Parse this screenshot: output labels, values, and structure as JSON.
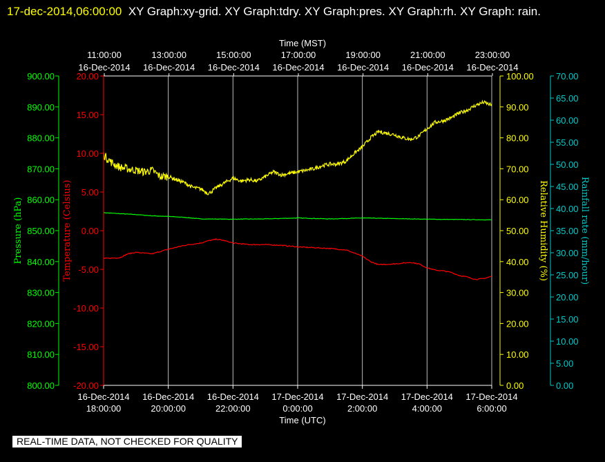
{
  "header": {
    "timestamp": "17-dec-2014,06:00:00",
    "graphs": "XY Graph:xy-grid.  XY Graph:tdry.  XY Graph:pres.  XY Graph:rh.  XY Graph: rain."
  },
  "quality_notice": "REAL-TIME DATA, NOT CHECKED FOR QUALITY",
  "chart_data": {
    "type": "line",
    "colors": {
      "temperature": "#ff0000",
      "pressure": "#00ff00",
      "humidity": "#ffff00",
      "rainfall": "#00cccc",
      "grid": "#ffffff"
    },
    "x_top": {
      "label": "Time (MST)",
      "ticks": [
        {
          "time": "11:00:00",
          "date": "16-Dec-2014"
        },
        {
          "time": "13:00:00",
          "date": "16-Dec-2014"
        },
        {
          "time": "15:00:00",
          "date": "16-Dec-2014"
        },
        {
          "time": "17:00:00",
          "date": "16-Dec-2014"
        },
        {
          "time": "19:00:00",
          "date": "16-Dec-2014"
        },
        {
          "time": "21:00:00",
          "date": "16-Dec-2014"
        },
        {
          "time": "23:00:00",
          "date": "16-Dec-2014"
        }
      ]
    },
    "x_bottom": {
      "label": "Time (UTC)",
      "range": [
        "2014-12-16 18:00",
        "2014-12-17 06:00"
      ],
      "ticks": [
        {
          "date": "16-Dec-2014",
          "time": "18:00:00"
        },
        {
          "date": "16-Dec-2014",
          "time": "20:00:00"
        },
        {
          "date": "16-Dec-2014",
          "time": "22:00:00"
        },
        {
          "date": "17-Dec-2014",
          "time": "0:00:00"
        },
        {
          "date": "17-Dec-2014",
          "time": "2:00:00"
        },
        {
          "date": "17-Dec-2014",
          "time": "4:00:00"
        },
        {
          "date": "17-Dec-2014",
          "time": "6:00:00"
        }
      ]
    },
    "axes": {
      "pressure": {
        "label": "Pressure (hPa)",
        "range": [
          800,
          900
        ],
        "ticks": [
          "800.00",
          "810.00",
          "820.00",
          "830.00",
          "840.00",
          "850.00",
          "860.00",
          "870.00",
          "880.00",
          "890.00",
          "900.00"
        ]
      },
      "temperature": {
        "label": "Temperature (Celsius)",
        "range": [
          -20,
          20
        ],
        "ticks": [
          "-20.00",
          "-15.00",
          "-10.00",
          "-5.00",
          "0.00",
          "5.00",
          "10.00",
          "15.00",
          "20.00"
        ]
      },
      "humidity": {
        "label": "Relative Humidity (%)",
        "range": [
          0,
          100
        ],
        "ticks": [
          "0.00",
          "10.00",
          "20.00",
          "30.00",
          "40.00",
          "50.00",
          "60.00",
          "70.00",
          "80.00",
          "90.00",
          "100.00"
        ]
      },
      "rainfall": {
        "label": "Rainfall rate (mm/hour)",
        "range": [
          0,
          70
        ],
        "ticks": [
          "0.00",
          "5.00",
          "10.00",
          "15.00",
          "20.00",
          "25.00",
          "30.00",
          "35.00",
          "40.00",
          "45.00",
          "50.00",
          "55.00",
          "60.00",
          "65.00",
          "70.00"
        ]
      }
    },
    "grid": "vertical",
    "series": {
      "humidity": [
        [
          0,
          74.5
        ],
        [
          0.25,
          72
        ],
        [
          0.5,
          70.5
        ],
        [
          0.75,
          70
        ],
        [
          1,
          69.5
        ],
        [
          1.25,
          69
        ],
        [
          1.5,
          69.5
        ],
        [
          1.75,
          67.5
        ],
        [
          2,
          67.5
        ],
        [
          2.25,
          66.5
        ],
        [
          2.5,
          65.5
        ],
        [
          2.75,
          64
        ],
        [
          3,
          63.5
        ],
        [
          3.25,
          62
        ],
        [
          3.5,
          64
        ],
        [
          3.75,
          65.5
        ],
        [
          4,
          67
        ],
        [
          4.25,
          66
        ],
        [
          4.5,
          66.5
        ],
        [
          4.75,
          66
        ],
        [
          5,
          67.5
        ],
        [
          5.25,
          69
        ],
        [
          5.5,
          68
        ],
        [
          5.75,
          68.5
        ],
        [
          6,
          69
        ],
        [
          6.5,
          70
        ],
        [
          6.75,
          71
        ],
        [
          7,
          71.5
        ],
        [
          7.25,
          71.5
        ],
        [
          7.5,
          72.5
        ],
        [
          7.75,
          75
        ],
        [
          8,
          77
        ],
        [
          8.25,
          80
        ],
        [
          8.5,
          82
        ],
        [
          8.75,
          81.5
        ],
        [
          9,
          81
        ],
        [
          9.25,
          80
        ],
        [
          9.5,
          79.5
        ],
        [
          9.75,
          80.5
        ],
        [
          10,
          83
        ],
        [
          10.25,
          85
        ],
        [
          10.5,
          85.5
        ],
        [
          10.75,
          86.5
        ],
        [
          11,
          88
        ],
        [
          11.25,
          89
        ],
        [
          11.5,
          90.5
        ],
        [
          11.75,
          91.5
        ],
        [
          12,
          90.5
        ]
      ],
      "temperature": [
        [
          0,
          -3.6
        ],
        [
          0.5,
          -3.5
        ],
        [
          0.75,
          -3.0
        ],
        [
          1,
          -2.8
        ],
        [
          1.5,
          -3.0
        ],
        [
          2,
          -2.4
        ],
        [
          2.5,
          -1.9
        ],
        [
          3,
          -1.6
        ],
        [
          3.25,
          -1.3
        ],
        [
          3.5,
          -1.1
        ],
        [
          3.75,
          -1.3
        ],
        [
          4,
          -1.6
        ],
        [
          4.5,
          -1.8
        ],
        [
          5,
          -1.8
        ],
        [
          5.5,
          -1.9
        ],
        [
          6,
          -2.1
        ],
        [
          6.5,
          -2.2
        ],
        [
          7,
          -2.3
        ],
        [
          7.5,
          -2.5
        ],
        [
          8,
          -3.3
        ],
        [
          8.25,
          -4.0
        ],
        [
          8.5,
          -4.4
        ],
        [
          9,
          -4.3
        ],
        [
          9.5,
          -4.1
        ],
        [
          9.75,
          -4.3
        ],
        [
          10,
          -4.8
        ],
        [
          10.25,
          -5.1
        ],
        [
          10.5,
          -5.2
        ],
        [
          10.75,
          -5.4
        ],
        [
          11,
          -5.8
        ],
        [
          11.25,
          -6.0
        ],
        [
          11.5,
          -6.3
        ],
        [
          11.75,
          -6.2
        ],
        [
          12,
          -5.9
        ]
      ],
      "pressure": [
        [
          0,
          855.8
        ],
        [
          1,
          855.2
        ],
        [
          1.5,
          854.8
        ],
        [
          2,
          854.6
        ],
        [
          2.5,
          854.3
        ],
        [
          3,
          853.8
        ],
        [
          4,
          853.7
        ],
        [
          5,
          853.8
        ],
        [
          6,
          854.1
        ],
        [
          7,
          853.8
        ],
        [
          8,
          854.1
        ],
        [
          9,
          853.9
        ],
        [
          10,
          853.7
        ],
        [
          11,
          853.6
        ],
        [
          12,
          853.5
        ]
      ]
    }
  }
}
